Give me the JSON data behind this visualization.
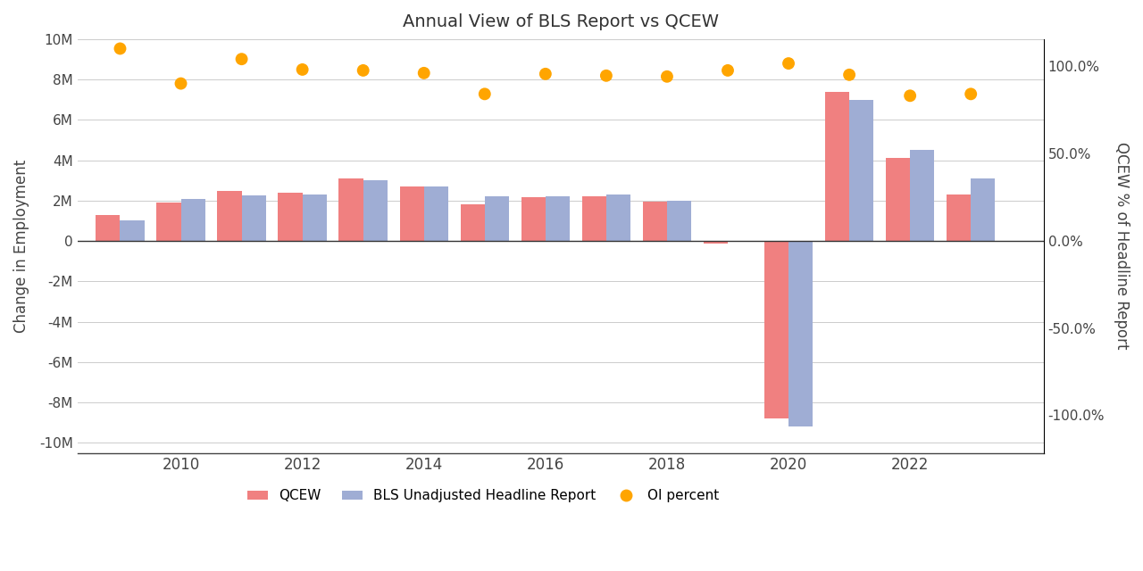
{
  "title": "Annual View of BLS Report vs QCEW",
  "years": [
    2009,
    2010,
    2011,
    2012,
    2013,
    2014,
    2015,
    2016,
    2017,
    2018,
    2019,
    2020,
    2021,
    2022,
    2023
  ],
  "qcew": [
    1300000,
    1900000,
    2500000,
    2400000,
    3100000,
    2700000,
    1800000,
    2150000,
    2200000,
    1950000,
    -150000,
    -8800000,
    7400000,
    4100000,
    2300000
  ],
  "bls": [
    1000000,
    2100000,
    2250000,
    2300000,
    3000000,
    2700000,
    2200000,
    2200000,
    2300000,
    2000000,
    -50000,
    -9200000,
    7000000,
    4500000,
    3100000
  ],
  "oi_x": [
    2009,
    2010,
    2011,
    2012,
    2013,
    2014,
    2015,
    2016,
    2017,
    2018,
    2019,
    2020,
    2021,
    2022,
    2023
  ],
  "oi_percent": [
    110.0,
    90.0,
    104.0,
    98.0,
    97.5,
    96.0,
    84.0,
    95.5,
    94.5,
    94.0,
    97.5,
    101.5,
    95.0,
    83.0,
    84.0
  ],
  "qcew_color": "#f08080",
  "bls_color": "#9fadd4",
  "oi_color": "#FFA500",
  "ylabel_left": "Change in Employment",
  "ylabel_right": "QCEW % of Headline Report",
  "ylim_left": [
    -10500000,
    10000000
  ],
  "ylim_right": [
    -121.5,
    115.4
  ],
  "bar_width": 0.4,
  "background_color": "#ffffff",
  "grid_color": "#cccccc",
  "xlim": [
    2008.3,
    2024.2
  ],
  "xticks": [
    2010,
    2012,
    2014,
    2016,
    2018,
    2020,
    2022
  ]
}
